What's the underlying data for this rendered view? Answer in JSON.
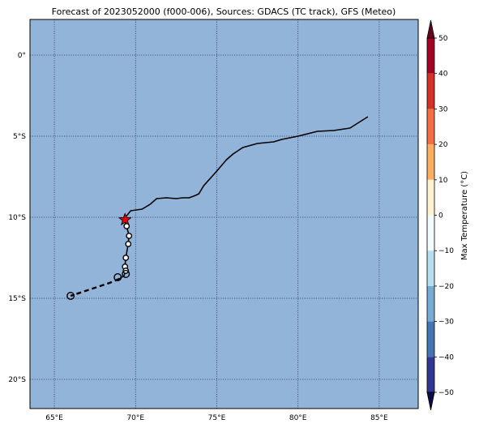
{
  "title": "Forecast of 2023052000 (f000-006), Sources: GDACS (TC track), GFS (Meteo)",
  "map": {
    "lon_range": [
      63.5,
      87.4
    ],
    "lat_range": [
      -21.8,
      2.2
    ],
    "ocean_color": "#92b4d9",
    "grid_style": "dotted",
    "lon_ticks": [
      {
        "value": 65,
        "label": "65°E"
      },
      {
        "value": 70,
        "label": "70°E"
      },
      {
        "value": 75,
        "label": "75°E"
      },
      {
        "value": 80,
        "label": "80°E"
      },
      {
        "value": 85,
        "label": "85°E"
      }
    ],
    "lat_ticks": [
      {
        "value": 0,
        "label": "0°"
      },
      {
        "value": -5,
        "label": "5°S"
      },
      {
        "value": -10,
        "label": "10°S"
      },
      {
        "value": -15,
        "label": "15°S"
      },
      {
        "value": -20,
        "label": "20°S"
      }
    ]
  },
  "track": {
    "line_color": "#000000",
    "solid_track": [
      [
        84.3,
        -3.8
      ],
      [
        83.2,
        -4.5
      ],
      [
        82.2,
        -4.65
      ],
      [
        81.2,
        -4.7
      ],
      [
        80.0,
        -5.0
      ],
      [
        79.0,
        -5.2
      ],
      [
        78.5,
        -5.35
      ],
      [
        77.5,
        -5.45
      ],
      [
        76.6,
        -5.7
      ],
      [
        76.0,
        -6.1
      ],
      [
        75.6,
        -6.45
      ],
      [
        75.0,
        -7.15
      ],
      [
        74.6,
        -7.6
      ],
      [
        74.2,
        -8.05
      ],
      [
        73.9,
        -8.55
      ],
      [
        73.7,
        -8.65
      ],
      [
        73.3,
        -8.8
      ],
      [
        72.9,
        -8.8
      ],
      [
        72.5,
        -8.85
      ],
      [
        71.9,
        -8.8
      ],
      [
        71.3,
        -8.85
      ],
      [
        70.9,
        -9.2
      ],
      [
        70.4,
        -9.5
      ],
      [
        69.7,
        -9.6
      ],
      [
        69.3,
        -10.1
      ],
      [
        69.45,
        -10.6
      ],
      [
        69.6,
        -11.1
      ],
      [
        69.55,
        -11.55
      ],
      [
        69.5,
        -11.9
      ],
      [
        69.4,
        -12.5
      ],
      [
        69.35,
        -13.0
      ],
      [
        69.35,
        -13.4
      ],
      [
        69.3,
        -13.6
      ],
      [
        69.0,
        -13.8
      ]
    ],
    "dashed_track": [
      [
        69.0,
        -13.8
      ],
      [
        68.4,
        -14.05
      ],
      [
        66.0,
        -14.85
      ]
    ],
    "current_position": {
      "lon": 69.35,
      "lat": -10.15,
      "color": "#e8000b"
    },
    "small_markers": [
      [
        69.45,
        -10.55
      ],
      [
        69.6,
        -11.15
      ],
      [
        69.55,
        -11.65
      ],
      [
        69.4,
        -12.5
      ],
      [
        69.35,
        -13.05
      ],
      [
        69.4,
        -13.3
      ]
    ],
    "large_markers": [
      [
        69.4,
        -13.5
      ],
      [
        68.9,
        -13.7
      ],
      [
        66.0,
        -14.85
      ]
    ]
  },
  "colorbar": {
    "label": "Max Temperature (°C)",
    "min": -50,
    "max": 50,
    "ticks": [
      {
        "value": 50,
        "label": "50"
      },
      {
        "value": 40,
        "label": "40"
      },
      {
        "value": 30,
        "label": "30"
      },
      {
        "value": 20,
        "label": "20"
      },
      {
        "value": 10,
        "label": "10"
      },
      {
        "value": 0,
        "label": "0"
      },
      {
        "value": -10,
        "label": "−10"
      },
      {
        "value": -20,
        "label": "−20"
      },
      {
        "value": -30,
        "label": "−30"
      },
      {
        "value": -40,
        "label": "−40"
      },
      {
        "value": -50,
        "label": "−50"
      }
    ],
    "extend_max_color": "#67001f",
    "extend_min_color": "#0c0c4a",
    "bands": [
      {
        "from": 40,
        "to": 50,
        "color": "#a50026"
      },
      {
        "from": 30,
        "to": 40,
        "color": "#d73027"
      },
      {
        "from": 20,
        "to": 30,
        "color": "#f46d43"
      },
      {
        "from": 10,
        "to": 20,
        "color": "#fdae61"
      },
      {
        "from": 0,
        "to": 10,
        "color": "#fff3cf"
      },
      {
        "from": -10,
        "to": 0,
        "color": "#f2fbff"
      },
      {
        "from": -20,
        "to": -10,
        "color": "#b8dff0"
      },
      {
        "from": -30,
        "to": -20,
        "color": "#74add1"
      },
      {
        "from": -40,
        "to": -30,
        "color": "#4575b4"
      },
      {
        "from": -50,
        "to": -40,
        "color": "#313695"
      }
    ]
  }
}
